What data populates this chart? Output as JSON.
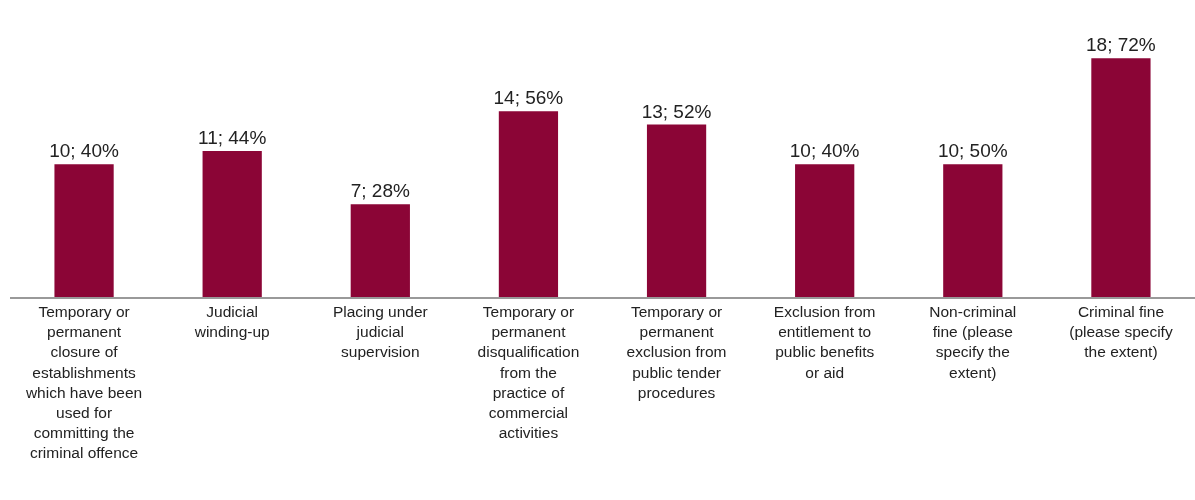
{
  "chart_data": {
    "type": "bar",
    "categories": [
      "Temporary or permanent closure of establishments which have been used for committing the criminal offence",
      "Judicial winding-up",
      "Placing under judicial supervision",
      "Temporary or permanent disqualification from the practice of commercial activities",
      "Temporary or permanent exclusion from public tender procedures",
      "Exclusion from entitlement to public benefits or aid",
      "Non-criminal fine (please specify the extent)",
      "Criminal fine (please specify the extent)"
    ],
    "values": [
      10,
      11,
      7,
      14,
      13,
      10,
      10,
      18
    ],
    "value_labels": [
      "10; 40%",
      "11; 44%",
      "7; 28%",
      "14; 56%",
      "13; 52%",
      "10; 40%",
      "10; 50%",
      "18; 72%"
    ],
    "color": "#8b0536"
  }
}
